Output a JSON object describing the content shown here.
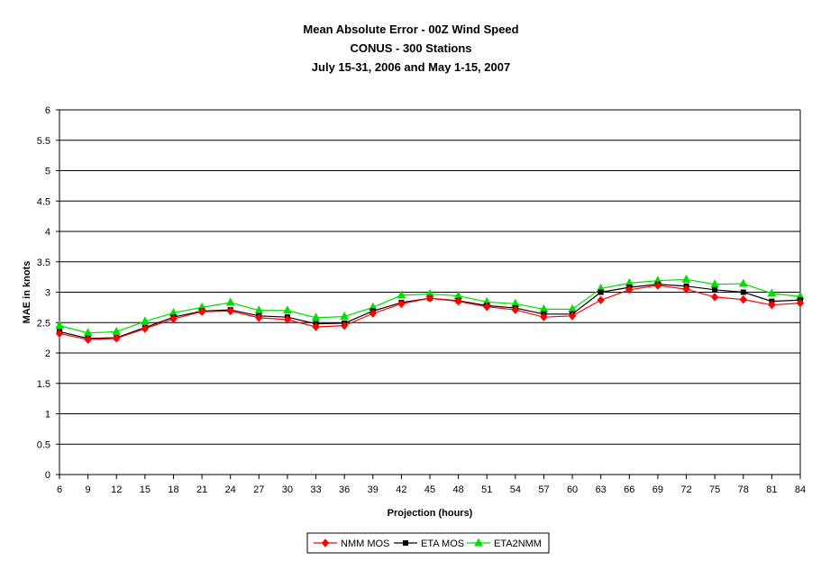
{
  "chart_data": {
    "type": "line",
    "title": [
      "Mean Absolute Error - 00Z Wind Speed",
      "CONUS - 300 Stations",
      "July 15-31, 2006 and May 1-15, 2007"
    ],
    "xlabel": "Projection (hours)",
    "ylabel": "MAE in knots",
    "ylim": [
      0,
      6
    ],
    "yticks": [
      "0",
      "0.5",
      "1",
      "1.5",
      "2",
      "2.5",
      "3",
      "3.5",
      "4",
      "4.5",
      "5",
      "5.5",
      "6"
    ],
    "grid": "horizontal major gridlines",
    "legend_position": "bottom",
    "x": [
      "6",
      "9",
      "12",
      "15",
      "18",
      "21",
      "24",
      "27",
      "30",
      "33",
      "36",
      "39",
      "42",
      "45",
      "48",
      "51",
      "54",
      "57",
      "60",
      "63",
      "66",
      "69",
      "72",
      "75",
      "78",
      "81",
      "84"
    ],
    "series": [
      {
        "name": "NMM MOS",
        "color": "#ff0000",
        "marker": "diamond",
        "values": [
          2.32,
          2.22,
          2.24,
          2.4,
          2.56,
          2.68,
          2.69,
          2.58,
          2.55,
          2.43,
          2.45,
          2.65,
          2.81,
          2.9,
          2.85,
          2.76,
          2.71,
          2.59,
          2.61,
          2.87,
          3.04,
          3.11,
          3.05,
          2.92,
          2.88,
          2.79,
          2.82
        ]
      },
      {
        "name": "ETA MOS",
        "color": "#000000",
        "marker": "square",
        "values": [
          2.35,
          2.24,
          2.25,
          2.42,
          2.59,
          2.69,
          2.71,
          2.61,
          2.59,
          2.48,
          2.49,
          2.69,
          2.83,
          2.9,
          2.86,
          2.78,
          2.74,
          2.64,
          2.64,
          3.0,
          3.08,
          3.13,
          3.1,
          3.04,
          3.0,
          2.85,
          2.87
        ]
      },
      {
        "name": "ETA2NMM",
        "color": "#00dd00",
        "marker": "triangle",
        "values": [
          2.45,
          2.33,
          2.35,
          2.52,
          2.66,
          2.75,
          2.83,
          2.7,
          2.7,
          2.58,
          2.6,
          2.75,
          2.95,
          2.97,
          2.94,
          2.84,
          2.81,
          2.72,
          2.72,
          3.06,
          3.15,
          3.19,
          3.21,
          3.13,
          3.14,
          2.98,
          2.93
        ]
      }
    ]
  }
}
